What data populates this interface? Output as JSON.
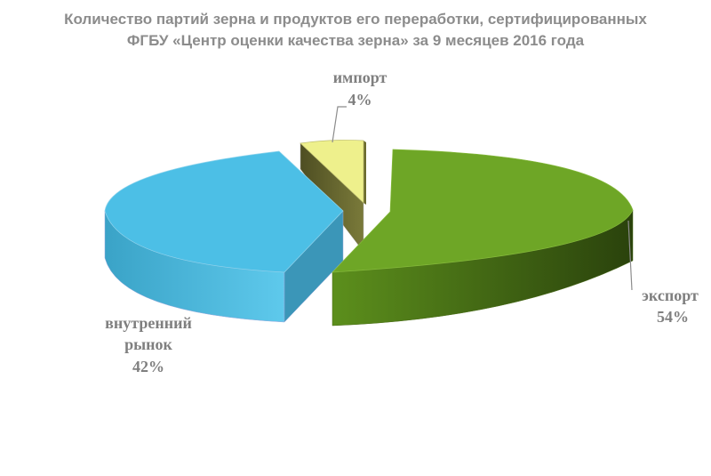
{
  "chart_data": {
    "type": "pie",
    "title_lines": [
      "Количество партий зерна и продуктов его переработки, сертифицированных",
      "ФГБУ «Центр оценки качества зерна» за 9 месяцев 2016 года"
    ],
    "slices": [
      {
        "label_lines": [
          "экспорт"
        ],
        "value_label": "54%",
        "value": 54,
        "color": "#6ea626"
      },
      {
        "label_lines": [
          "внутренний",
          "рынок"
        ],
        "value_label": "42%",
        "value": 42,
        "color": "#4cbfe6"
      },
      {
        "label_lines": [
          "импорт"
        ],
        "value_label": "4%",
        "value": 4,
        "color": "#eef08c"
      }
    ]
  }
}
